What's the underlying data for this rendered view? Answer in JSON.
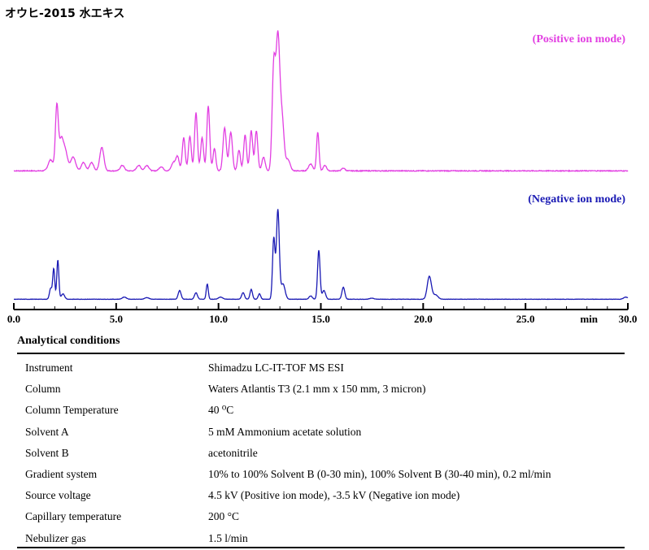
{
  "title": "オウヒ-2015 水エキス",
  "chart_data": {
    "type": "line",
    "xlabel": "min",
    "xlim": [
      0,
      30
    ],
    "xticks": [
      "0.0",
      "5.0",
      "10.0",
      "15.0",
      "20.0",
      "25.0",
      "30.0"
    ],
    "grid": false,
    "series": [
      {
        "name": "(Positive ion mode)",
        "color": "#e23fe2",
        "baseline": 0.01,
        "noise": 0.006,
        "peaks": [
          [
            1.8,
            0.08,
            0.12
          ],
          [
            2.1,
            0.46,
            0.07
          ],
          [
            2.3,
            0.2,
            0.1
          ],
          [
            2.5,
            0.15,
            0.12
          ],
          [
            2.9,
            0.1,
            0.12
          ],
          [
            3.4,
            0.06,
            0.1
          ],
          [
            3.8,
            0.06,
            0.1
          ],
          [
            4.3,
            0.17,
            0.1
          ],
          [
            5.3,
            0.04,
            0.1
          ],
          [
            6.1,
            0.04,
            0.1
          ],
          [
            6.5,
            0.04,
            0.1
          ],
          [
            7.2,
            0.03,
            0.1
          ],
          [
            7.8,
            0.06,
            0.1
          ],
          [
            8.0,
            0.1,
            0.08
          ],
          [
            8.3,
            0.24,
            0.07
          ],
          [
            8.6,
            0.25,
            0.07
          ],
          [
            8.9,
            0.42,
            0.07
          ],
          [
            9.2,
            0.24,
            0.07
          ],
          [
            9.5,
            0.47,
            0.07
          ],
          [
            9.8,
            0.16,
            0.07
          ],
          [
            10.3,
            0.31,
            0.08
          ],
          [
            10.6,
            0.28,
            0.08
          ],
          [
            11.0,
            0.15,
            0.07
          ],
          [
            11.3,
            0.26,
            0.07
          ],
          [
            11.6,
            0.29,
            0.07
          ],
          [
            11.85,
            0.29,
            0.07
          ],
          [
            12.2,
            0.1,
            0.08
          ],
          [
            12.7,
            0.75,
            0.08
          ],
          [
            12.9,
            0.93,
            0.09
          ],
          [
            13.1,
            0.38,
            0.1
          ],
          [
            13.4,
            0.08,
            0.1
          ],
          [
            14.5,
            0.05,
            0.1
          ],
          [
            14.85,
            0.28,
            0.06
          ],
          [
            15.2,
            0.04,
            0.08
          ],
          [
            16.1,
            0.02,
            0.08
          ]
        ]
      },
      {
        "name": "(Negative ion mode)",
        "color": "#1a1ab4",
        "baseline": 0.005,
        "noise": 0.003,
        "peaks": [
          [
            1.8,
            0.1,
            0.06
          ],
          [
            1.95,
            0.28,
            0.05
          ],
          [
            2.15,
            0.36,
            0.05
          ],
          [
            2.4,
            0.05,
            0.08
          ],
          [
            5.4,
            0.02,
            0.1
          ],
          [
            6.5,
            0.015,
            0.1
          ],
          [
            8.1,
            0.08,
            0.07
          ],
          [
            8.9,
            0.06,
            0.07
          ],
          [
            9.45,
            0.14,
            0.05
          ],
          [
            10.1,
            0.02,
            0.1
          ],
          [
            11.2,
            0.06,
            0.07
          ],
          [
            11.6,
            0.09,
            0.06
          ],
          [
            12.0,
            0.05,
            0.06
          ],
          [
            12.7,
            0.56,
            0.06
          ],
          [
            12.9,
            0.82,
            0.07
          ],
          [
            13.15,
            0.14,
            0.1
          ],
          [
            14.5,
            0.03,
            0.08
          ],
          [
            14.9,
            0.45,
            0.06
          ],
          [
            15.15,
            0.08,
            0.08
          ],
          [
            16.1,
            0.11,
            0.07
          ],
          [
            17.5,
            0.01,
            0.1
          ],
          [
            20.3,
            0.21,
            0.1
          ],
          [
            20.6,
            0.04,
            0.12
          ],
          [
            29.9,
            0.02,
            0.1
          ]
        ]
      }
    ]
  },
  "conditions": {
    "heading": "Analytical conditions",
    "rows": [
      {
        "label": "Instrument",
        "value": "Shimadzu LC-IT-TOF MS ESI"
      },
      {
        "label": "Column",
        "value": "Waters Atlantis T3 (2.1 mm x 150 mm, 3 micron)"
      },
      {
        "label": "Column Temperature",
        "value": "40 ⁰C"
      },
      {
        "label": "Solvent A",
        "value": "5 mM Ammonium acetate solution"
      },
      {
        "label": "Solvent B",
        "value": "acetonitrile"
      },
      {
        "label": "Gradient system",
        "value": "10% to 100% Solvent B (0-30 min), 100% Solvent B (30-40 min), 0.2 ml/min"
      },
      {
        "label": "Source voltage",
        "value": "4.5 kV (Positive ion mode), -3.5 kV (Negative ion mode)"
      },
      {
        "label": "Capillary temperature",
        "value": "200 °C"
      },
      {
        "label": "Nebulizer gas",
        "value": "1.5 l/min"
      }
    ]
  }
}
